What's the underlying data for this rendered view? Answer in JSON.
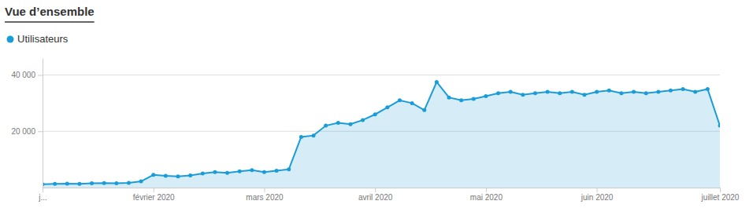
{
  "chart_data": {
    "type": "area",
    "title": "Vue d’ensemble",
    "categories": [
      "j...",
      null,
      null,
      null,
      null,
      null,
      null,
      null,
      null,
      "février 2020",
      null,
      null,
      null,
      null,
      null,
      null,
      null,
      null,
      "mars 2020",
      null,
      null,
      null,
      null,
      null,
      null,
      null,
      null,
      "avril 2020",
      null,
      null,
      null,
      null,
      null,
      null,
      null,
      null,
      "mai 2020",
      null,
      null,
      null,
      null,
      null,
      null,
      null,
      null,
      "juin 2020",
      null,
      null,
      null,
      null,
      null,
      null,
      null,
      null,
      null,
      "juillet 2020"
    ],
    "series": [
      {
        "name": "Utilisateurs",
        "color": "#1a9cd8",
        "marker": "circle",
        "values": [
          1200,
          1300,
          1400,
          1350,
          1500,
          1600,
          1550,
          1700,
          2200,
          4500,
          4200,
          4000,
          4300,
          5000,
          5500,
          5200,
          5800,
          6200,
          5500,
          6000,
          6500,
          18000,
          18500,
          22000,
          23000,
          22500,
          24000,
          26000,
          28500,
          31000,
          30000,
          27500,
          37500,
          32000,
          31000,
          31500,
          32500,
          33500,
          34000,
          33000,
          33500,
          34000,
          33500,
          34000,
          33000,
          34000,
          34500,
          33500,
          34000,
          33500,
          34000,
          34500,
          35000,
          34000,
          35000,
          22000
        ]
      }
    ],
    "ylim": [
      0,
      46000
    ],
    "yticks": [
      {
        "value": 20000,
        "label": "20 000"
      },
      {
        "value": 40000,
        "label": "40 000"
      }
    ],
    "grid": true,
    "legend": "upper-left"
  }
}
